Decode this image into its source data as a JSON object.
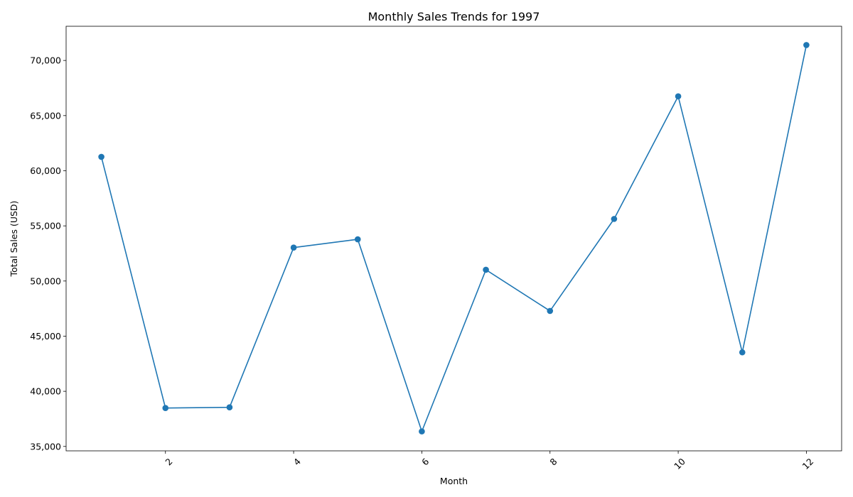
{
  "chart_data": {
    "type": "line",
    "title": "Monthly Sales Trends for 1997",
    "xlabel": "Month",
    "ylabel": "Total Sales (USD)",
    "x": [
      1,
      2,
      3,
      4,
      5,
      6,
      7,
      8,
      9,
      10,
      11,
      12
    ],
    "values": [
      61259,
      38484,
      38547,
      53032,
      53781,
      36363,
      51020,
      47287,
      55629,
      66749,
      43534,
      71398
    ],
    "xlim": [
      0.45,
      12.55
    ],
    "ylim": [
      34600,
      73100
    ],
    "x_ticks": [
      2,
      4,
      6,
      8,
      10,
      12
    ],
    "x_tick_labels": [
      "2",
      "4",
      "6",
      "8",
      "10",
      "12"
    ],
    "y_ticks": [
      35000,
      40000,
      45000,
      50000,
      55000,
      60000,
      65000,
      70000
    ],
    "y_tick_labels": [
      "35,000",
      "40,000",
      "45,000",
      "50,000",
      "55,000",
      "60,000",
      "65,000",
      "70,000"
    ],
    "grid": false,
    "line_color": "#1f77b4",
    "marker": "circle"
  }
}
